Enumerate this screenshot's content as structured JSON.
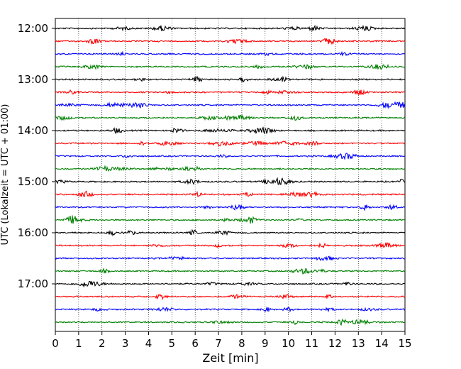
{
  "chart_data": {
    "type": "line",
    "title": "",
    "xlabel": "Zeit  [min]",
    "ylabel": "UTC (Lokalzeit = UTC + 01:00)",
    "xlim": [
      0,
      15
    ],
    "x_ticks": [
      0,
      1,
      2,
      3,
      4,
      5,
      6,
      7,
      8,
      9,
      10,
      11,
      12,
      13,
      14,
      15
    ],
    "y_ticks": [
      "12:00",
      "13:00",
      "14:00",
      "15:00",
      "16:00",
      "17:00"
    ],
    "trace_interval_min": 15,
    "traces_start": "12:00",
    "traces_end": "17:45",
    "trace_count": 24,
    "trace_colors": [
      "#000000",
      "#ff0000",
      "#0000ff",
      "#008000"
    ],
    "grid": {
      "x": true,
      "style": "dotted"
    },
    "legend": "none"
  }
}
